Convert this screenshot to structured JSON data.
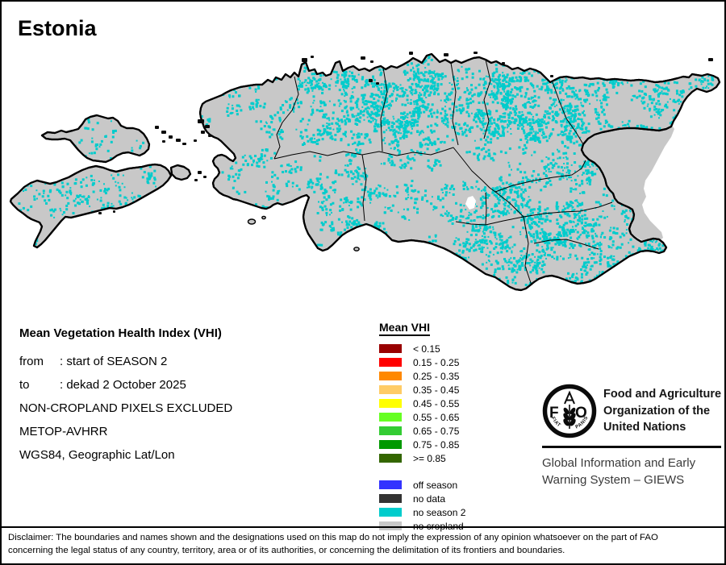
{
  "title": "Estonia",
  "map": {
    "colors": {
      "land_no_cropland": "#C8C8C8",
      "no_season_2": "#00CCCC",
      "boundary": "#000000",
      "no_data": "#0A0A0A",
      "water": "#FFFFFF"
    }
  },
  "info": {
    "heading": "Mean Vegetation Health Index (VHI)",
    "separator": ": ",
    "rows": [
      {
        "label": "from",
        "value": "start of SEASON 2"
      },
      {
        "label": "to",
        "value": "dekad 2 October 2025"
      }
    ],
    "lines": [
      "NON-CROPLAND PIXELS EXCLUDED",
      "METOP-AVHRR",
      "WGS84, Geographic Lat/Lon"
    ]
  },
  "legend": {
    "title": "Mean VHI",
    "classes": [
      {
        "label": "< 0.15",
        "color": "#990000"
      },
      {
        "label": "0.15 - 0.25",
        "color": "#FF0000"
      },
      {
        "label": "0.25 - 0.35",
        "color": "#FF8800"
      },
      {
        "label": "0.35 - 0.45",
        "color": "#FFCC66"
      },
      {
        "label": "0.45 - 0.55",
        "color": "#FFFF00"
      },
      {
        "label": "0.55 - 0.65",
        "color": "#66FF22"
      },
      {
        "label": "0.65 - 0.75",
        "color": "#33CC33"
      },
      {
        "label": "0.75 - 0.85",
        "color": "#009900"
      },
      {
        "label": ">= 0.85",
        "color": "#336600"
      }
    ],
    "extra": [
      {
        "label": "off season",
        "color": "#3333FF"
      },
      {
        "label": "no data",
        "color": "#333333"
      },
      {
        "label": "no season 2",
        "color": "#00CCCC"
      },
      {
        "label": "no cropland",
        "color": "#C8C8C8"
      }
    ]
  },
  "fao": {
    "org_lines": [
      "Food and Agriculture",
      "Organization of the",
      "United Nations"
    ],
    "giews_lines": [
      "Global Information and Early",
      "Warning System – GIEWS"
    ],
    "logo": {
      "f": "F",
      "a": "A",
      "o": "O",
      "motto_left": "FIAT",
      "motto_right": "PANIS"
    }
  },
  "disclaimer": {
    "line1": "Disclaimer: The boundaries and names shown and the designations used on this map do not imply the expression of any opinion whatsoever on the part of FAO",
    "line2": "concerning the legal status of any country, territory, area or of its authorities, or concerning the delimitation of its frontiers and boundaries."
  }
}
